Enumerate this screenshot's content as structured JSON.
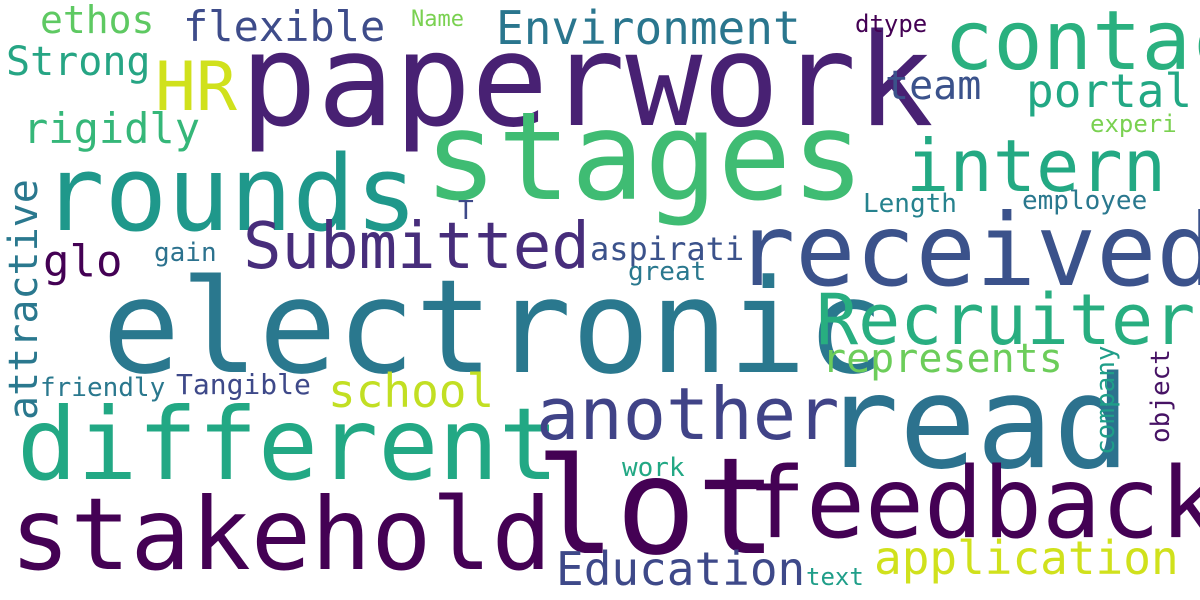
{
  "words": {
    "paperwork": {
      "text": "paperwork",
      "color": "#482173"
    },
    "electronic": {
      "text": "electronic",
      "color": "#2a788e"
    },
    "stages": {
      "text": "stages",
      "color": "#3fbc73"
    },
    "received": {
      "text": "received",
      "color": "#3b528b"
    },
    "read": {
      "text": "read",
      "color": "#2c728e"
    },
    "lot": {
      "text": "lot",
      "color": "#440154"
    },
    "feedback": {
      "text": "feedback",
      "color": "#440154"
    },
    "different": {
      "text": "different",
      "color": "#22a884"
    },
    "stakehold": {
      "text": "stakehold",
      "color": "#440154"
    },
    "rounds": {
      "text": "rounds",
      "color": "#1f988b"
    },
    "contac": {
      "text": "contac",
      "color": "#2ab07f"
    },
    "intern": {
      "text": "intern",
      "color": "#23a983"
    },
    "Recruiter": {
      "text": "Recruiter",
      "color": "#28ae80"
    },
    "another": {
      "text": "another",
      "color": "#404387"
    },
    "Submitted": {
      "text": "Submitted",
      "color": "#472d7b"
    },
    "HR": {
      "text": "HR",
      "color": "#d0e11c"
    },
    "Environment": {
      "text": "Environment",
      "color": "#2a768e"
    },
    "flexible": {
      "text": "flexible",
      "color": "#3e4c8a"
    },
    "ethos": {
      "text": "ethos",
      "color": "#5ec962"
    },
    "Strong": {
      "text": "Strong",
      "color": "#26a584"
    },
    "rigidly": {
      "text": "rigidly",
      "color": "#35b779"
    },
    "team": {
      "text": "team",
      "color": "#3b528b"
    },
    "portal": {
      "text": "portal",
      "color": "#22a884"
    },
    "Name": {
      "text": "Name",
      "color": "#7ad151"
    },
    "dtype": {
      "text": "dtype",
      "color": "#440154"
    },
    "experi": {
      "text": "experi",
      "color": "#7ad151"
    },
    "Length": {
      "text": "Length",
      "color": "#26828e"
    },
    "employee": {
      "text": "employee",
      "color": "#2a788e"
    },
    "T": {
      "text": "T",
      "color": "#3e4989"
    },
    "glo": {
      "text": "glo",
      "color": "#440154"
    },
    "gain": {
      "text": "gain",
      "color": "#2c728e"
    },
    "aspirati": {
      "text": "aspirati",
      "color": "#3b528b"
    },
    "great": {
      "text": "great",
      "color": "#2a788e"
    },
    "represents": {
      "text": "represents",
      "color": "#6ccd5a"
    },
    "school": {
      "text": "school",
      "color": "#c2df23"
    },
    "Tangible": {
      "text": "Tangible",
      "color": "#3e4989"
    },
    "friendly": {
      "text": "friendly",
      "color": "#2a788e"
    },
    "attractive": {
      "text": "attractive",
      "color": "#2a788e"
    },
    "company": {
      "text": "company",
      "color": "#1f9e89"
    },
    "object": {
      "text": "object",
      "color": "#471365"
    },
    "work": {
      "text": "work",
      "color": "#22a884"
    },
    "text": {
      "text": "text",
      "color": "#1f9e89"
    },
    "Education": {
      "text": "Education",
      "color": "#3e4989"
    },
    "application": {
      "text": "application",
      "color": "#d0e11c"
    }
  }
}
